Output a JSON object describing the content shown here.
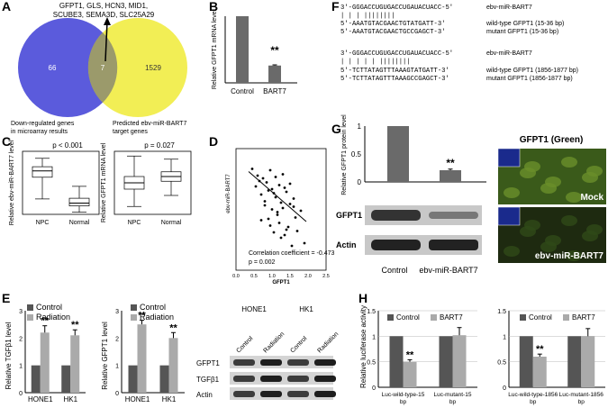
{
  "panels": {
    "A": {
      "label": "A",
      "genes": "GFPT1, GLS, HCN3, MID1,\nSCUBE3, SEMA3D, SLC25A29",
      "left_count": "66",
      "overlap_count": "7",
      "right_count": "1529",
      "left_caption": "Down-regulated genes\nin microarray results",
      "right_caption": "Predicted ebv-miR-BART7\ntarget genes",
      "colors": {
        "left": "#5b5bdc",
        "right": "#f2ee55",
        "overlap": "#9b9a6b"
      }
    },
    "B": {
      "label": "B",
      "ylabel": "Relative GFPT1 mRNA level",
      "significance": "**"
    },
    "C": {
      "label": "C",
      "plot1_ylabel": "Relative ebv-miR-BART7 level",
      "plot1_p": "p < 0.001",
      "plot2_ylabel": "Relative GFPT1 mRNA level",
      "plot2_p": "p = 0.027"
    },
    "D": {
      "label": "D",
      "ylabel": "ebv-miR-BART7",
      "xlabel": "GFPT1",
      "corr_text": "Correlation coefficient = -0.473",
      "p_text": "p = 0.002"
    },
    "E": {
      "label": "E",
      "legend_control": "Control",
      "legend_radiation": "Radiation",
      "plot1_ylabel": "Relative TGFβ1 level",
      "plot2_ylabel": "Relative GFPT1 level",
      "blot_cells": [
        "HONE1",
        "HK1"
      ],
      "blot_lanes": [
        "Control",
        "Radiation",
        "Control",
        "Radiation"
      ],
      "blot_rows": [
        "GFPT1",
        "TGFβ1",
        "Actin"
      ]
    },
    "F": {
      "label": "F",
      "seq_lines": [
        {
          "seq": "3'-GGGACCUGUGACCUGAUACUACC-5'",
          "name": "ebv-miR-BART7"
        },
        {
          "seq": "  |   |  |            ||||||||",
          "name": ""
        },
        {
          "seq": "5'-AAATGTACGAACTGTATGATT-3'",
          "name": "wild-type GFPT1 (15-36 bp)"
        },
        {
          "seq": "5'-AAATGTACGAACTGCCGAGCT-3'",
          "name": "mutant GFPT1 (15-36 bp)"
        },
        {
          "seq": "3'-GGGACCUGUGACCUGAUACUACC-5'",
          "name": "ebv-miR-BART7"
        },
        {
          "seq": "  |     |  |    | |   ||||||||",
          "name": ""
        },
        {
          "seq": "5'-TCTTATAGTTTAAAGTATGATT-3'",
          "name": "wild-type GFPT1 (1856-1877 bp)"
        },
        {
          "seq": "5'-TCTTATAGTTTAAAGCCGAGCT-3'",
          "name": "mutant GFPT1 (1856-1877 bp)"
        }
      ]
    },
    "G": {
      "label": "G",
      "ylabel": "Relative GFPT1 protein level",
      "significance": "**",
      "blot_rows": [
        "GFPT1",
        "Actin"
      ],
      "lanes": [
        "Control",
        "ebv-miR-BART7"
      ],
      "image_title": "GFPT1 (Green)",
      "image_labels": [
        "Mock",
        "ebv-miR-BART7"
      ]
    },
    "H": {
      "label": "H",
      "ylabel": "Relative luciferase activity",
      "legend_control": "Control",
      "legend_bart7": "BART7"
    }
  },
  "chart_data": [
    {
      "id": "B",
      "type": "bar",
      "categories": [
        "Control",
        "BART7"
      ],
      "values": [
        1.0,
        0.26
      ],
      "errors": [
        0,
        0.01
      ],
      "ylabel": "Relative GFPT1 mRNA level",
      "ylim": [
        0,
        1
      ]
    },
    {
      "id": "C1",
      "type": "box",
      "categories": [
        "NPC",
        "Normal"
      ],
      "ylabel": "Relative ebv-miR-BART7 level",
      "boxes": [
        {
          "min": 2.2,
          "q1": 5.3,
          "median": 6.2,
          "q3": 6.8,
          "max": 8.0
        },
        {
          "min": 0.3,
          "q1": 1.2,
          "median": 1.6,
          "q3": 2.3,
          "max": 4.0
        }
      ]
    },
    {
      "id": "C2",
      "type": "box",
      "categories": [
        "NPC",
        "Normal"
      ],
      "ylabel": "Relative GFPT1 mRNA level",
      "boxes": [
        {
          "min": 0.5,
          "q1": 1.6,
          "median": 2.0,
          "q3": 2.4,
          "max": 3.7
        },
        {
          "min": 1.2,
          "q1": 2.1,
          "median": 2.4,
          "q3": 2.7,
          "max": 3.5
        }
      ]
    },
    {
      "id": "D",
      "type": "scatter",
      "xlabel": "GFPT1",
      "ylabel": "ebv-miR-BART7",
      "xlim": [
        0,
        2.5
      ],
      "ylim": [
        0,
        9
      ],
      "xticks": [
        "0.0",
        "0.5",
        "1.0",
        "1.5",
        "2.0",
        "2.5"
      ],
      "trend": {
        "x": [
          0.35,
          1.95
        ],
        "y": [
          7.3,
          3.6
        ]
      },
      "x": [
        0.45,
        0.55,
        0.6,
        0.7,
        0.75,
        0.8,
        0.85,
        0.9,
        0.9,
        0.95,
        1.0,
        1.0,
        1.05,
        1.1,
        1.1,
        1.15,
        1.2,
        1.2,
        1.25,
        1.3,
        1.3,
        1.35,
        1.4,
        1.45,
        1.5,
        1.5,
        1.55,
        1.6,
        1.65,
        1.7,
        1.8,
        1.9,
        0.65,
        0.95,
        1.15,
        1.35,
        0.8,
        1.05,
        1.25,
        1.6,
        0.7,
        1.4
      ],
      "y": [
        7.5,
        6.2,
        7.0,
        5.6,
        6.8,
        4.8,
        6.5,
        5.9,
        3.8,
        7.4,
        6.0,
        4.5,
        2.8,
        6.9,
        5.4,
        4.1,
        6.3,
        3.5,
        5.0,
        7.1,
        4.6,
        2.6,
        5.8,
        3.2,
        6.4,
        4.9,
        1.8,
        5.3,
        3.9,
        2.9,
        4.4,
        2.0,
        6.6,
        3.3,
        4.3,
        6.1,
        5.1,
        5.7,
        2.4,
        4.7,
        3.7,
        3.0
      ]
    },
    {
      "id": "E1",
      "type": "bar",
      "categories": [
        "HONE1",
        "HK1"
      ],
      "ylabel": "Relative TGFβ1 level",
      "ylim": [
        0,
        3
      ],
      "series": [
        {
          "name": "Control",
          "values": [
            1,
            1
          ],
          "errors": [
            0,
            0
          ]
        },
        {
          "name": "Radiation",
          "values": [
            2.2,
            2.1
          ],
          "errors": [
            0.25,
            0.2
          ]
        }
      ],
      "significance": [
        "**",
        "**"
      ]
    },
    {
      "id": "E2",
      "type": "bar",
      "categories": [
        "HONE1",
        "HK1"
      ],
      "ylabel": "Relative GFPT1 level",
      "ylim": [
        0,
        3
      ],
      "series": [
        {
          "name": "Control",
          "values": [
            1,
            1
          ],
          "errors": [
            0,
            0
          ]
        },
        {
          "name": "Radiation",
          "values": [
            2.5,
            2.0
          ],
          "errors": [
            0.15,
            0.2
          ]
        }
      ],
      "significance": [
        "**",
        "**"
      ]
    },
    {
      "id": "G",
      "type": "bar",
      "categories": [
        "Control",
        "ebv-miR-BART7"
      ],
      "values": [
        1.0,
        0.21
      ],
      "errors": [
        0,
        0.02
      ],
      "ylabel": "Relative GFPT1 protein level",
      "ylim": [
        0,
        1
      ],
      "significance": [
        "",
        "**"
      ]
    },
    {
      "id": "H1",
      "type": "bar",
      "categories": [
        "Luc-wild-type-15\nbp",
        "Luc-mutant-15\nbp"
      ],
      "ylabel": "Relative luciferase activity",
      "ylim": [
        0,
        1.5
      ],
      "yticks": [
        "0",
        "0.5",
        "1",
        "1.5"
      ],
      "series": [
        {
          "name": "Control",
          "values": [
            1,
            1
          ],
          "errors": [
            0,
            0
          ]
        },
        {
          "name": "BART7",
          "values": [
            0.5,
            1.02
          ],
          "errors": [
            0.04,
            0.15
          ]
        }
      ],
      "significance": [
        "**",
        ""
      ]
    },
    {
      "id": "H2",
      "type": "bar",
      "categories": [
        "Luc-wild-type-1856\nbp",
        "Luc-mutant-1856\nbp"
      ],
      "ylim": [
        0,
        1.5
      ],
      "yticks": [
        "0",
        "0.5",
        "1",
        "1.5"
      ],
      "series": [
        {
          "name": "Control",
          "values": [
            1,
            1
          ],
          "errors": [
            0,
            0
          ]
        },
        {
          "name": "BART7",
          "values": [
            0.6,
            1.0
          ],
          "errors": [
            0.05,
            0.15
          ]
        }
      ],
      "significance": [
        "**",
        ""
      ]
    }
  ]
}
